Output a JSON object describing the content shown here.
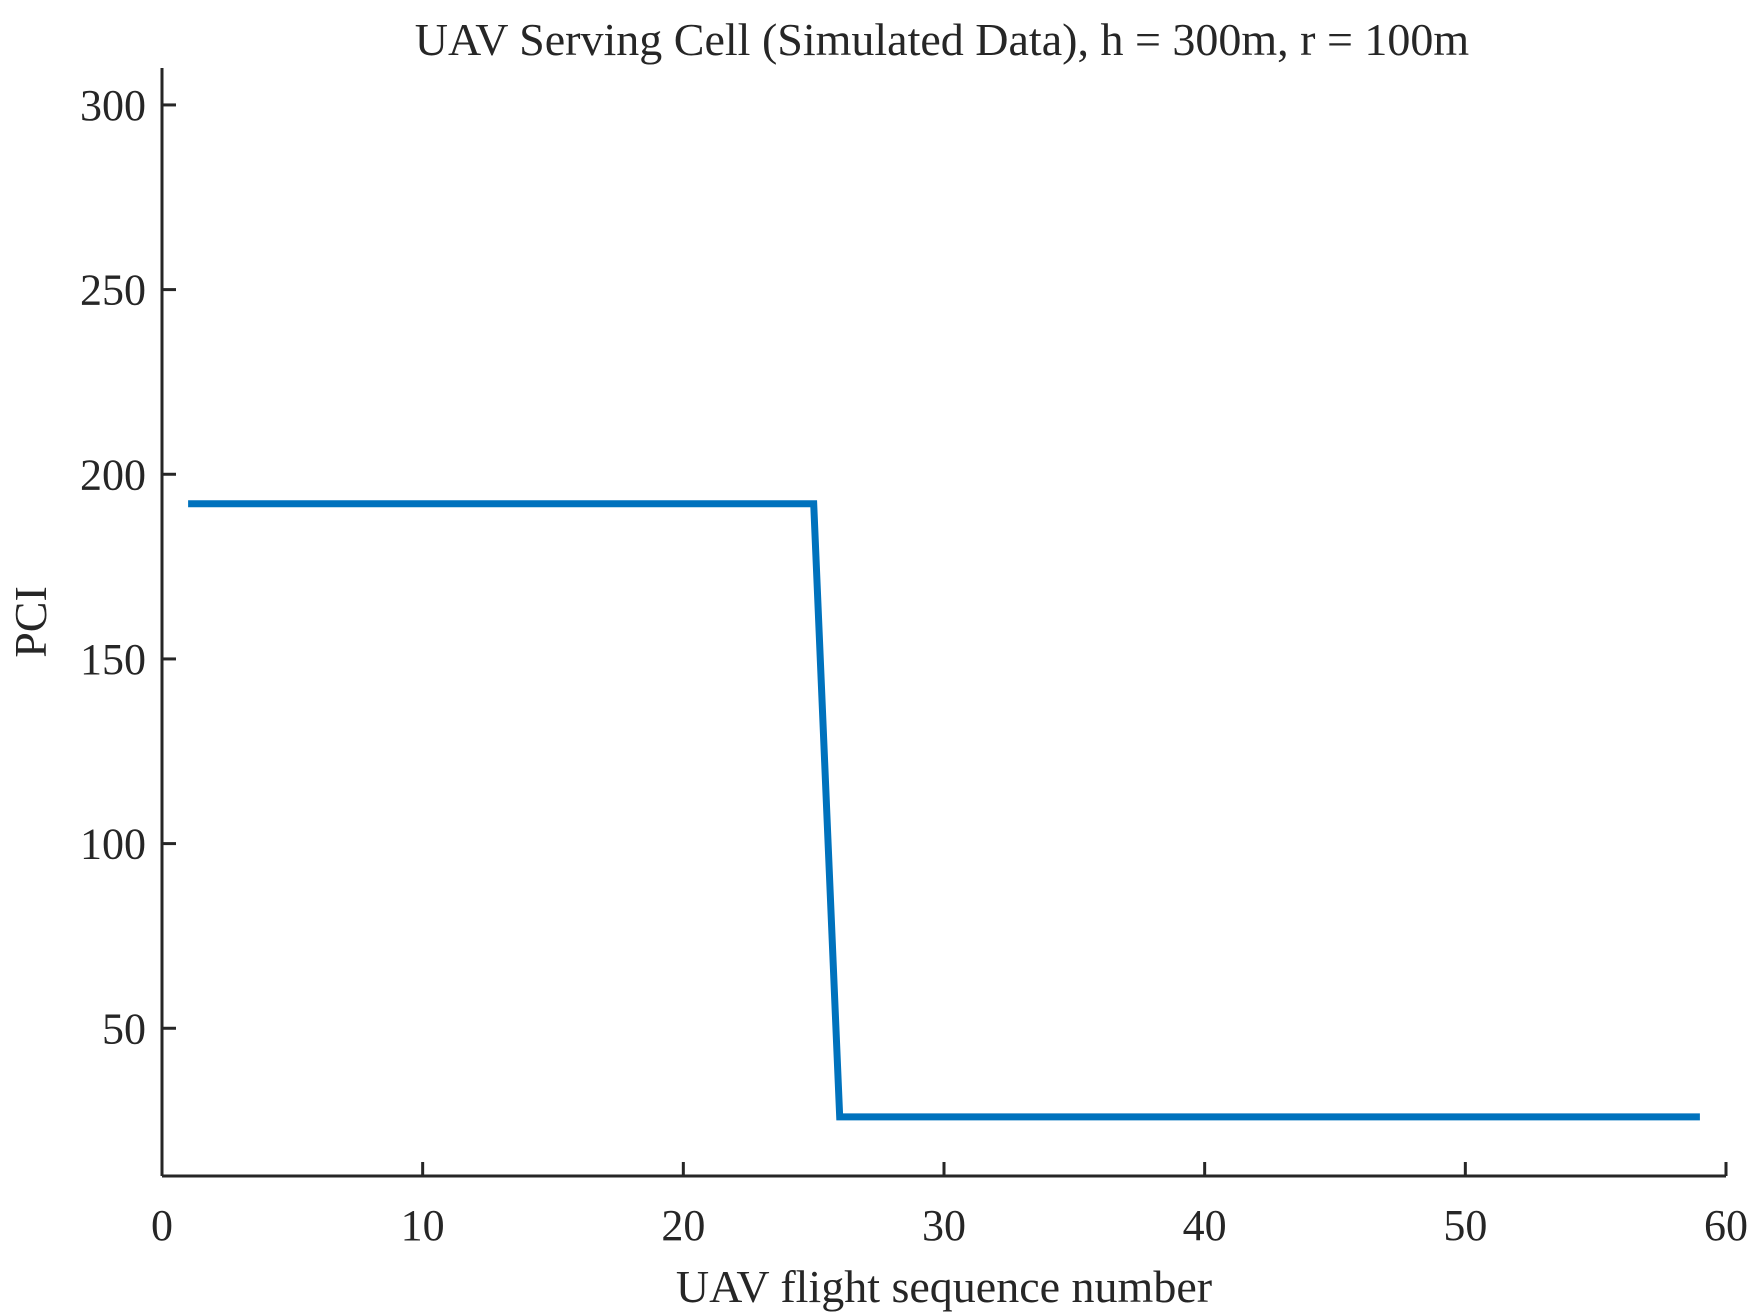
{
  "chart_data": {
    "type": "line",
    "title": "UAV Serving Cell (Simulated Data), h = 300m, r = 100m",
    "xlabel": "UAV flight sequence number",
    "ylabel": "PCI",
    "xlim": [
      0,
      60
    ],
    "ylim": [
      10,
      310
    ],
    "xticks": [
      0,
      10,
      20,
      30,
      40,
      50,
      60
    ],
    "yticks": [
      50,
      100,
      150,
      200,
      250,
      300
    ],
    "xtick_labels": [
      "0",
      "10",
      "20",
      "30",
      "40",
      "50",
      "60"
    ],
    "ytick_labels": [
      "50",
      "100",
      "150",
      "200",
      "250",
      "300"
    ],
    "grid": false,
    "series": [
      {
        "color": "#0072BD",
        "x": [
          1,
          25,
          26,
          59
        ],
        "y": [
          192,
          192,
          26,
          26
        ]
      }
    ]
  }
}
